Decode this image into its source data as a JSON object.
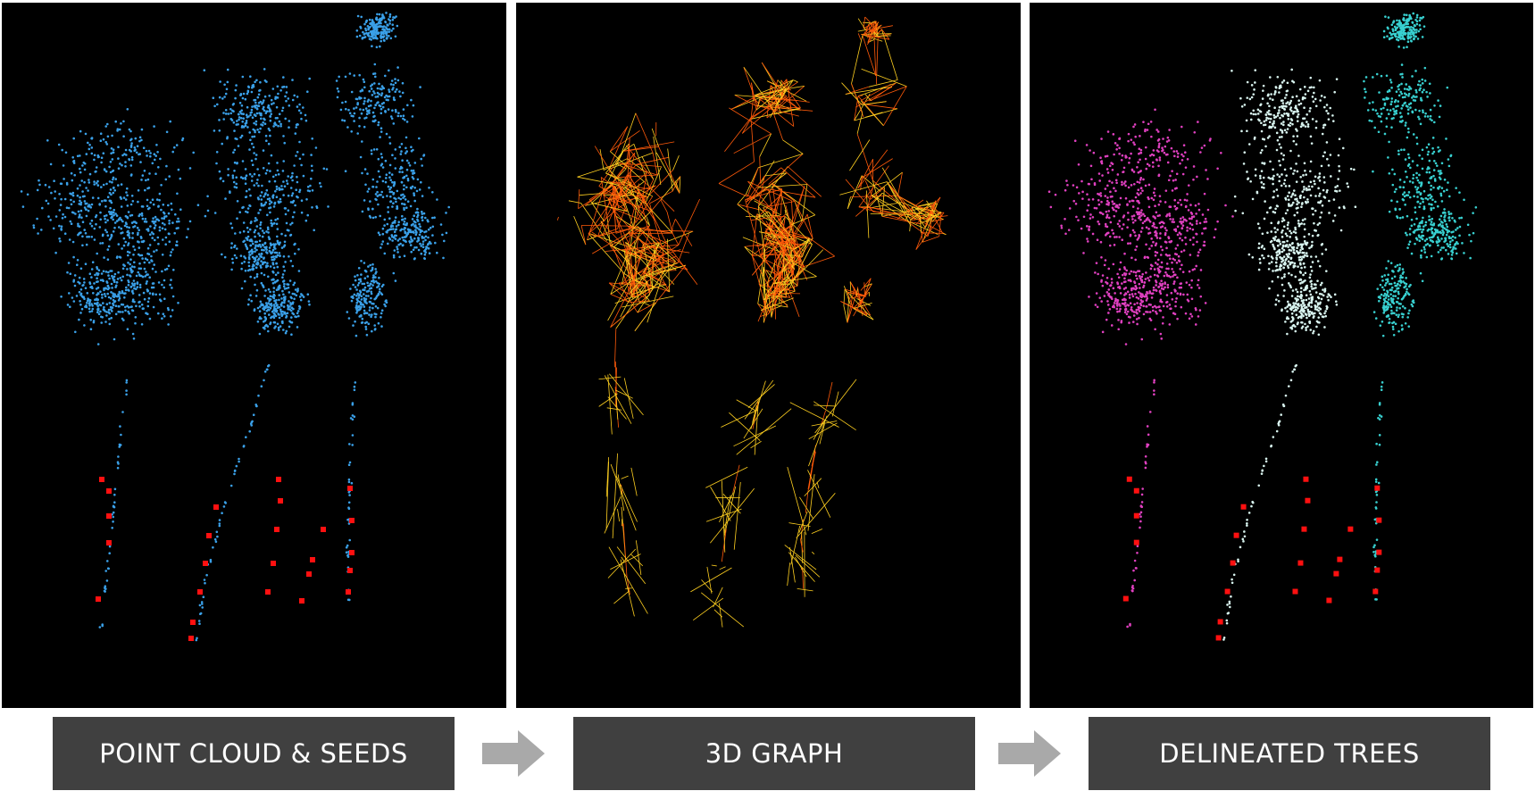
{
  "panels": [
    {
      "id": "point-cloud",
      "label": "POINT CLOUD & SEEDS"
    },
    {
      "id": "graph",
      "label": "3D GRAPH"
    },
    {
      "id": "trees",
      "label": "DELINEATED TREES"
    }
  ],
  "colors": {
    "background": "#000000",
    "points": "#3aa0e8",
    "seeds": "#ff1010",
    "graph_edge_a": "#ff5a0a",
    "graph_edge_b": "#ffd020",
    "tree_1": "#e040c0",
    "tree_2": "#d8f4ef",
    "tree_3": "#38d0d0",
    "label_bg": "#404040",
    "arrow": "#a9a9a9"
  }
}
